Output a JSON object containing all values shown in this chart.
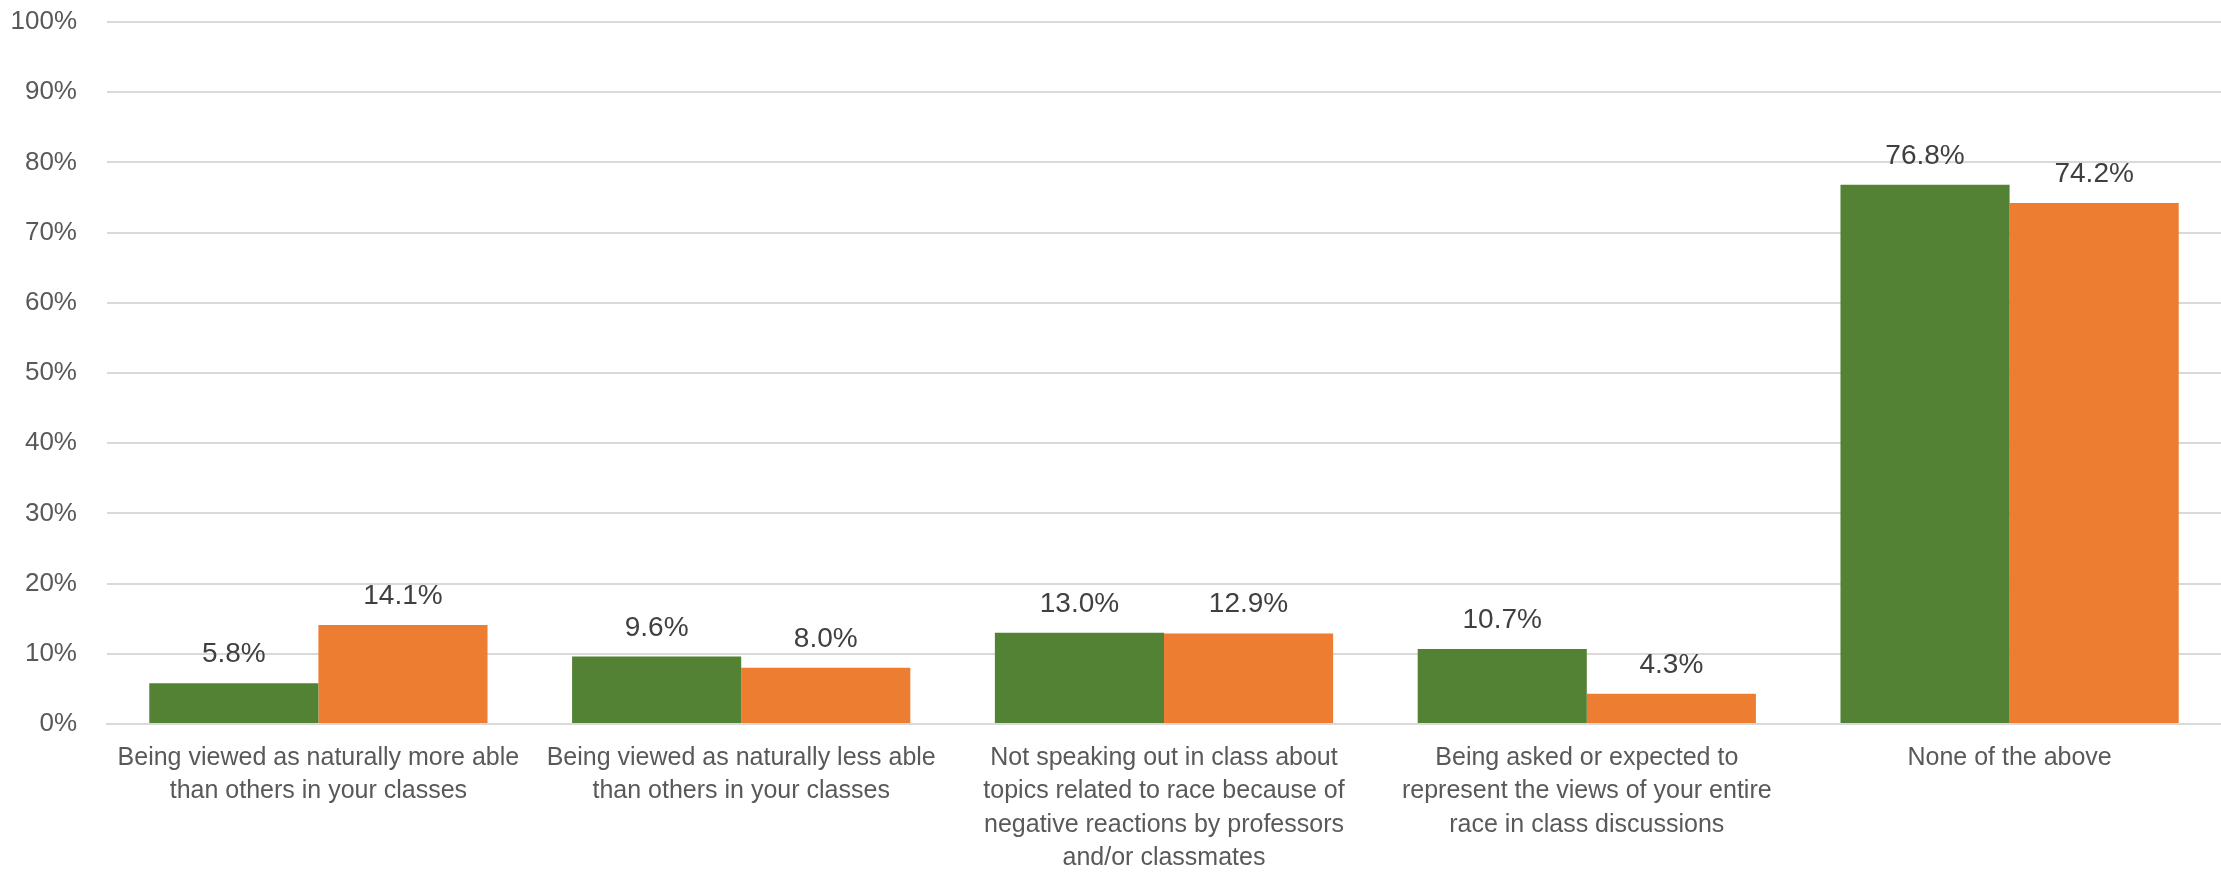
{
  "chart_data": {
    "type": "bar",
    "categories": [
      "Being viewed as naturally more able than others in your classes",
      "Being viewed as naturally less able than others in your classes",
      "Not speaking out in class about topics related to race because of negative reactions by professors and/or classmates",
      "Being asked or expected to represent the views of your entire race in class discussions",
      "None of the above"
    ],
    "series": [
      {
        "color": "#548235",
        "values": [
          5.8,
          9.6,
          13.0,
          10.7,
          76.8
        ],
        "value_labels": [
          "5.8%",
          "9.6%",
          "13.0%",
          "10.7%",
          "76.8%"
        ]
      },
      {
        "color": "#ed7d31",
        "values": [
          14.1,
          8.0,
          12.9,
          4.3,
          74.2
        ],
        "value_labels": [
          "14.1%",
          "8.0%",
          "12.9%",
          "4.3%",
          "74.2%"
        ]
      }
    ],
    "ylim": [
      0,
      100
    ],
    "yticks": [
      {
        "value": 0,
        "label": "0%"
      },
      {
        "value": 10,
        "label": "10%"
      },
      {
        "value": 20,
        "label": "20%"
      },
      {
        "value": 30,
        "label": "30%"
      },
      {
        "value": 40,
        "label": "40%"
      },
      {
        "value": 50,
        "label": "50%"
      },
      {
        "value": 60,
        "label": "60%"
      },
      {
        "value": 70,
        "label": "70%"
      },
      {
        "value": 80,
        "label": "80%"
      },
      {
        "value": 90,
        "label": "90%"
      },
      {
        "value": 100,
        "label": "100%"
      }
    ],
    "grid": "y"
  }
}
